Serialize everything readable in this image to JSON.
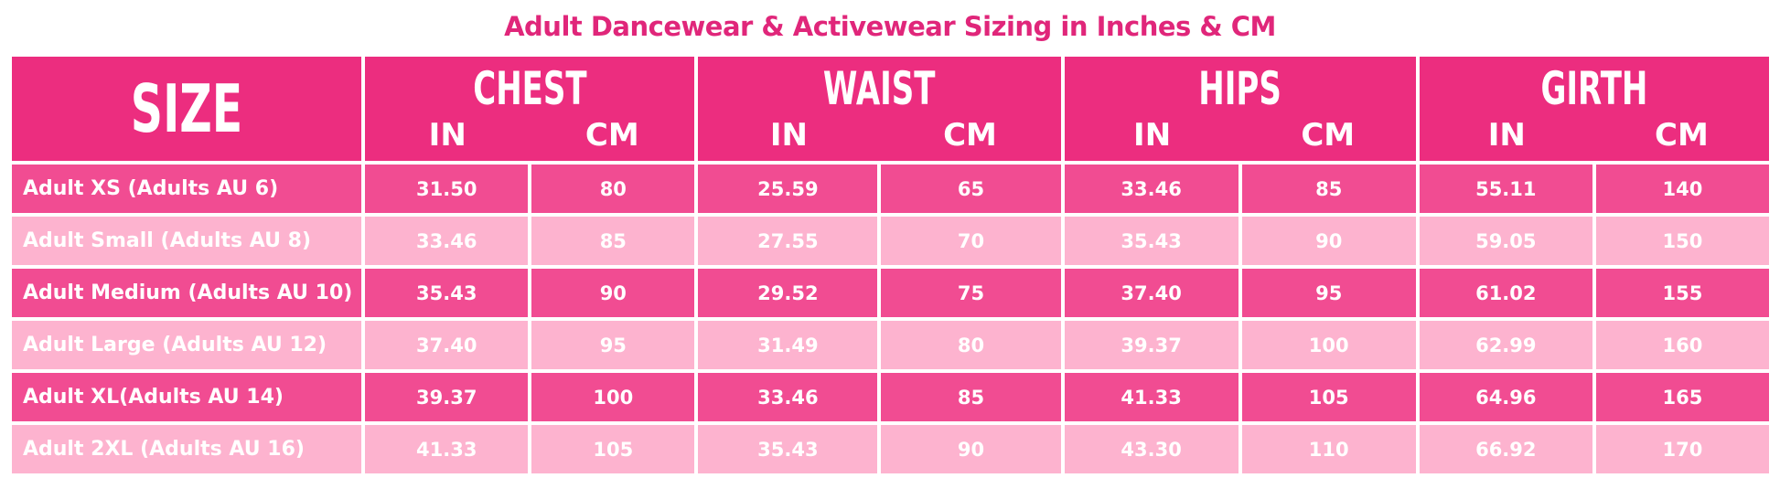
{
  "title": "Adult Dancewear & Activewear Sizing in Inches & CM",
  "table": {
    "size_header": "SIZE",
    "groups": [
      {
        "name": "CHEST",
        "units": [
          "IN",
          "CM"
        ]
      },
      {
        "name": "WAIST",
        "units": [
          "IN",
          "CM"
        ]
      },
      {
        "name": "HIPS",
        "units": [
          "IN",
          "CM"
        ]
      },
      {
        "name": "GIRTH",
        "units": [
          "IN",
          "CM"
        ]
      }
    ],
    "rows": [
      [
        "Adult XS (Adults AU 6)",
        "31.50",
        "80",
        "25.59",
        "65",
        "33.46",
        "85",
        "55.11",
        "140"
      ],
      [
        "Adult Small (Adults AU 8)",
        "33.46",
        "85",
        "27.55",
        "70",
        "35.43",
        "90",
        "59.05",
        "150"
      ],
      [
        "Adult Medium (Adults AU 10)",
        "35.43",
        "90",
        "29.52",
        "75",
        "37.40",
        "95",
        "61.02",
        "155"
      ],
      [
        "Adult Large (Adults AU 12)",
        "37.40",
        "95",
        "31.49",
        "80",
        "39.37",
        "100",
        "62.99",
        "160"
      ],
      [
        "Adult XL(Adults AU 14)",
        "39.37",
        "100",
        "33.46",
        "85",
        "41.33",
        "105",
        "64.96",
        "165"
      ],
      [
        "Adult 2XL (Adults AU 16)",
        "41.33",
        "105",
        "35.43",
        "90",
        "43.30",
        "110",
        "66.92",
        "170"
      ]
    ]
  }
}
